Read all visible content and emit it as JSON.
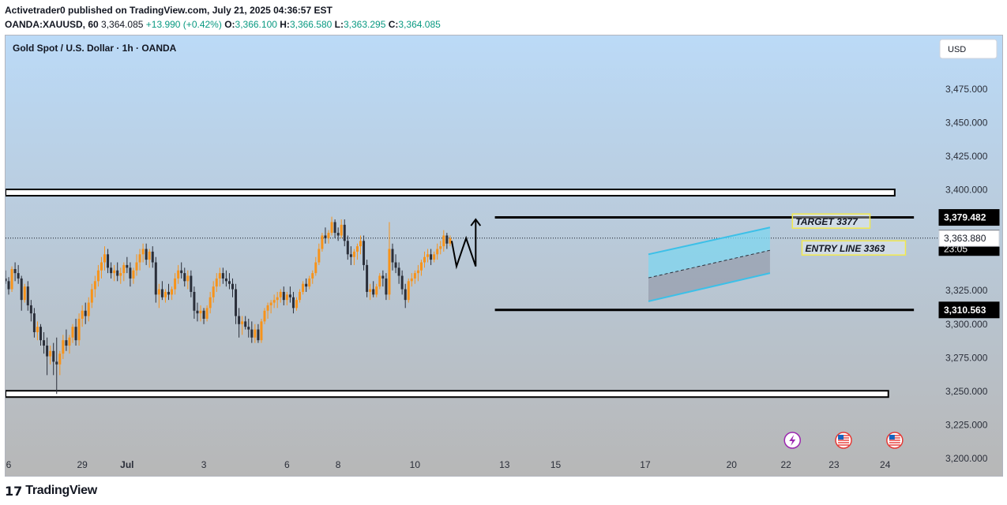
{
  "header": {
    "published": "Activetrader0 published on TradingView.com, July 21, 2025 04:36:57 EST",
    "symbol": "OANDA:XAUUSD, 60",
    "last": "3,364.085",
    "change": "+13.990 (+0.42%)",
    "o_label": "O:",
    "o_value": "3,366.100",
    "h_label": "H:",
    "h_value": "3,366.580",
    "l_label": "L:",
    "l_value": "3,363.295",
    "c_label": "C:",
    "c_value": "3,364.085"
  },
  "footer": {
    "brand": "TradingView",
    "mark": "17"
  },
  "chart_data": {
    "type": "candlestick",
    "title": "Gold Spot / U.S. Dollar · 1h · OANDA",
    "currency_label": "USD",
    "y_axis": {
      "ticks": [
        3200,
        3225,
        3250,
        3275,
        3300,
        3325,
        3350,
        3375,
        3400,
        3425,
        3450,
        3475
      ],
      "tick_labels": [
        "3,200.000",
        "3,225.000",
        "3,250.000",
        "3,275.000",
        "3,300.000",
        "3,325.000",
        "",
        "",
        "3,400.000",
        "3,425.000",
        "3,450.000",
        "3,475.000"
      ],
      "ylim": [
        3187,
        3515
      ]
    },
    "x_axis": {
      "labels": [
        "6",
        "29",
        "Jul",
        "3",
        "6",
        "8",
        "10",
        "13",
        "15",
        "17",
        "20",
        "22",
        "23",
        "24"
      ],
      "label_index": [
        -18,
        23,
        37,
        61,
        87,
        103,
        127,
        155,
        171,
        199,
        226,
        243,
        258,
        274
      ],
      "bold": [
        "Jul"
      ]
    },
    "price_markers": [
      {
        "value": 3379.482,
        "label": "3,379.482",
        "style": "dark"
      },
      {
        "value": 3364.085,
        "label": "3,364.085",
        "sublabel": "23:05",
        "style": "dark"
      },
      {
        "value": 3363.88,
        "label": "3,363.880",
        "style": "light"
      },
      {
        "value": 3310.563,
        "label": "3,310.563",
        "style": "dark"
      }
    ],
    "levels": [
      {
        "value": 3379.482,
        "from": 152,
        "to": 283,
        "kind": "line"
      },
      {
        "value": 3310.563,
        "from": 152,
        "to": 283,
        "kind": "line"
      },
      {
        "value": 3398,
        "from": -30,
        "to": 277,
        "kind": "band"
      },
      {
        "value": 3248,
        "from": -30,
        "to": 275,
        "kind": "band"
      }
    ],
    "annotations": [
      {
        "text": "TARGET 3377",
        "index": 246,
        "value": 3375
      },
      {
        "text": "ENTRY LINE 3363",
        "index": 249,
        "value": 3355
      }
    ],
    "channel": {
      "upper": [
        [
          200,
          3352
        ],
        [
          238,
          3372
        ]
      ],
      "lower": [
        [
          200,
          3317
        ],
        [
          238,
          3338
        ]
      ]
    },
    "event_icons": [
      "lightning-icon",
      "us-flag-icon",
      "us-flag-icon"
    ],
    "candles": [
      [
        3334,
        3340,
        3330,
        3332
      ],
      [
        3332,
        3335,
        3322,
        3326
      ],
      [
        3326,
        3343,
        3324,
        3341
      ],
      [
        3341,
        3346,
        3332,
        3338
      ],
      [
        3338,
        3344,
        3330,
        3334
      ],
      [
        3334,
        3336,
        3310,
        3318
      ],
      [
        3318,
        3330,
        3316,
        3328
      ],
      [
        3328,
        3332,
        3310,
        3314
      ],
      [
        3314,
        3318,
        3302,
        3308
      ],
      [
        3308,
        3312,
        3290,
        3294
      ],
      [
        3294,
        3302,
        3288,
        3298
      ],
      [
        3298,
        3300,
        3284,
        3288
      ],
      [
        3288,
        3294,
        3278,
        3284
      ],
      [
        3284,
        3290,
        3262,
        3276
      ],
      [
        3276,
        3284,
        3270,
        3280
      ],
      [
        3280,
        3286,
        3262,
        3272
      ],
      [
        3272,
        3290,
        3248,
        3270
      ],
      [
        3270,
        3280,
        3262,
        3278
      ],
      [
        3278,
        3292,
        3274,
        3288
      ],
      [
        3288,
        3296,
        3280,
        3284
      ],
      [
        3284,
        3292,
        3278,
        3290
      ],
      [
        3290,
        3300,
        3286,
        3298
      ],
      [
        3298,
        3304,
        3284,
        3288
      ],
      [
        3288,
        3308,
        3284,
        3304
      ],
      [
        3304,
        3314,
        3298,
        3310
      ],
      [
        3310,
        3316,
        3300,
        3306
      ],
      [
        3306,
        3320,
        3302,
        3316
      ],
      [
        3316,
        3330,
        3312,
        3326
      ],
      [
        3326,
        3336,
        3320,
        3332
      ],
      [
        3332,
        3344,
        3328,
        3340
      ],
      [
        3340,
        3350,
        3334,
        3346
      ],
      [
        3346,
        3358,
        3340,
        3352
      ],
      [
        3352,
        3356,
        3338,
        3342
      ],
      [
        3342,
        3346,
        3334,
        3338
      ],
      [
        3338,
        3344,
        3332,
        3340
      ],
      [
        3340,
        3346,
        3332,
        3336
      ],
      [
        3336,
        3342,
        3330,
        3338
      ],
      [
        3338,
        3346,
        3332,
        3344
      ],
      [
        3344,
        3350,
        3338,
        3342
      ],
      [
        3342,
        3346,
        3328,
        3334
      ],
      [
        3334,
        3342,
        3330,
        3340
      ],
      [
        3340,
        3352,
        3336,
        3346
      ],
      [
        3346,
        3356,
        3340,
        3352
      ],
      [
        3352,
        3360,
        3346,
        3356
      ],
      [
        3356,
        3360,
        3344,
        3348
      ],
      [
        3348,
        3356,
        3342,
        3354
      ],
      [
        3354,
        3358,
        3342,
        3346
      ],
      [
        3346,
        3350,
        3316,
        3322
      ],
      [
        3322,
        3330,
        3312,
        3326
      ],
      [
        3326,
        3332,
        3318,
        3320
      ],
      [
        3320,
        3326,
        3316,
        3324
      ],
      [
        3324,
        3330,
        3318,
        3322
      ],
      [
        3322,
        3328,
        3318,
        3326
      ],
      [
        3326,
        3338,
        3322,
        3334
      ],
      [
        3334,
        3344,
        3330,
        3340
      ],
      [
        3340,
        3346,
        3334,
        3338
      ],
      [
        3338,
        3342,
        3328,
        3332
      ],
      [
        3332,
        3340,
        3326,
        3336
      ],
      [
        3336,
        3340,
        3320,
        3324
      ],
      [
        3324,
        3328,
        3304,
        3310
      ],
      [
        3310,
        3316,
        3302,
        3308
      ],
      [
        3308,
        3314,
        3302,
        3310
      ],
      [
        3310,
        3312,
        3300,
        3304
      ],
      [
        3304,
        3314,
        3302,
        3312
      ],
      [
        3312,
        3324,
        3308,
        3320
      ],
      [
        3320,
        3332,
        3316,
        3328
      ],
      [
        3328,
        3338,
        3324,
        3334
      ],
      [
        3334,
        3342,
        3328,
        3338
      ],
      [
        3338,
        3342,
        3330,
        3334
      ],
      [
        3334,
        3340,
        3328,
        3332
      ],
      [
        3332,
        3338,
        3326,
        3330
      ],
      [
        3330,
        3334,
        3320,
        3326
      ],
      [
        3326,
        3330,
        3300,
        3306
      ],
      [
        3306,
        3312,
        3290,
        3300
      ],
      [
        3300,
        3306,
        3292,
        3302
      ],
      [
        3302,
        3306,
        3296,
        3298
      ],
      [
        3298,
        3304,
        3290,
        3296
      ],
      [
        3296,
        3302,
        3286,
        3290
      ],
      [
        3290,
        3300,
        3286,
        3296
      ],
      [
        3296,
        3300,
        3286,
        3288
      ],
      [
        3288,
        3304,
        3286,
        3302
      ],
      [
        3302,
        3312,
        3300,
        3310
      ],
      [
        3310,
        3316,
        3304,
        3314
      ],
      [
        3314,
        3318,
        3308,
        3316
      ],
      [
        3316,
        3322,
        3312,
        3318
      ],
      [
        3318,
        3324,
        3312,
        3320
      ],
      [
        3320,
        3326,
        3316,
        3324
      ],
      [
        3324,
        3328,
        3314,
        3318
      ],
      [
        3318,
        3324,
        3314,
        3322
      ],
      [
        3322,
        3328,
        3316,
        3320
      ],
      [
        3320,
        3324,
        3308,
        3312
      ],
      [
        3312,
        3320,
        3310,
        3318
      ],
      [
        3318,
        3326,
        3316,
        3324
      ],
      [
        3324,
        3332,
        3322,
        3330
      ],
      [
        3330,
        3334,
        3324,
        3328
      ],
      [
        3328,
        3336,
        3326,
        3334
      ],
      [
        3334,
        3340,
        3330,
        3338
      ],
      [
        3338,
        3350,
        3336,
        3346
      ],
      [
        3346,
        3360,
        3344,
        3356
      ],
      [
        3356,
        3368,
        3354,
        3366
      ],
      [
        3366,
        3372,
        3360,
        3364
      ],
      [
        3364,
        3370,
        3360,
        3368
      ],
      [
        3368,
        3380,
        3366,
        3376
      ],
      [
        3376,
        3378,
        3364,
        3368
      ],
      [
        3368,
        3372,
        3362,
        3366
      ],
      [
        3366,
        3378,
        3364,
        3374
      ],
      [
        3374,
        3378,
        3358,
        3362
      ],
      [
        3362,
        3366,
        3348,
        3352
      ],
      [
        3352,
        3358,
        3344,
        3350
      ],
      [
        3350,
        3356,
        3344,
        3354
      ],
      [
        3354,
        3360,
        3348,
        3358
      ],
      [
        3358,
        3366,
        3352,
        3362
      ],
      [
        3362,
        3366,
        3340,
        3344
      ],
      [
        3344,
        3348,
        3320,
        3324
      ],
      [
        3324,
        3330,
        3318,
        3326
      ],
      [
        3326,
        3332,
        3320,
        3322
      ],
      [
        3322,
        3330,
        3320,
        3328
      ],
      [
        3328,
        3338,
        3326,
        3336
      ],
      [
        3336,
        3340,
        3328,
        3334
      ],
      [
        3334,
        3338,
        3318,
        3322
      ],
      [
        3322,
        3376,
        3318,
        3356
      ],
      [
        3356,
        3360,
        3340,
        3346
      ],
      [
        3346,
        3352,
        3338,
        3342
      ],
      [
        3342,
        3346,
        3330,
        3336
      ],
      [
        3336,
        3340,
        3322,
        3326
      ],
      [
        3326,
        3330,
        3312,
        3318
      ],
      [
        3318,
        3334,
        3316,
        3332
      ],
      [
        3332,
        3338,
        3328,
        3334
      ],
      [
        3334,
        3340,
        3330,
        3338
      ],
      [
        3338,
        3344,
        3332,
        3340
      ],
      [
        3340,
        3348,
        3336,
        3346
      ],
      [
        3346,
        3354,
        3342,
        3350
      ],
      [
        3350,
        3356,
        3346,
        3352
      ],
      [
        3352,
        3356,
        3344,
        3348
      ],
      [
        3348,
        3354,
        3346,
        3352
      ],
      [
        3352,
        3360,
        3348,
        3356
      ],
      [
        3356,
        3362,
        3352,
        3358
      ],
      [
        3358,
        3370,
        3354,
        3366
      ],
      [
        3366,
        3368,
        3356,
        3360
      ],
      [
        3360,
        3366,
        3358,
        3364
      ]
    ],
    "candle_start_index": -1
  }
}
